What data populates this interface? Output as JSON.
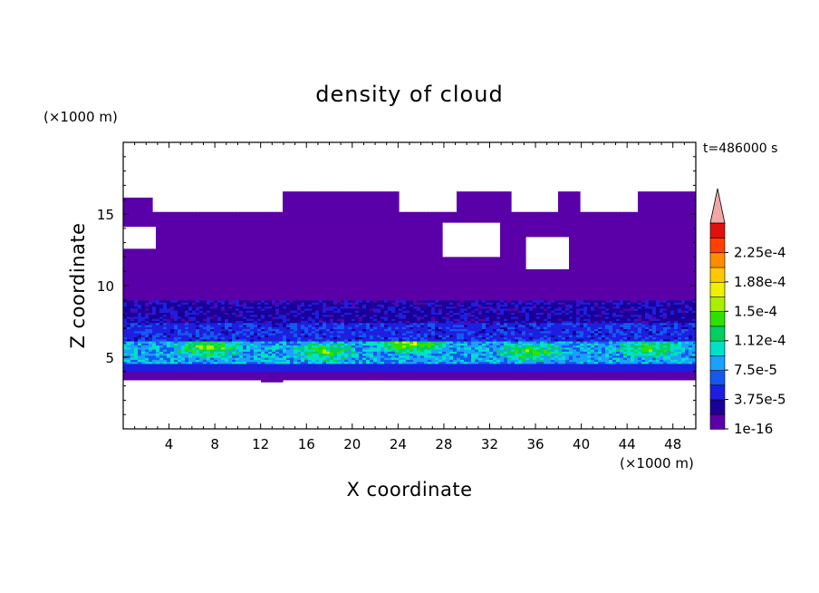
{
  "chart_data": {
    "type": "heatmap",
    "title": "density of cloud",
    "xlabel": "X coordinate",
    "ylabel": "Z coordinate",
    "x_unit": "(×1000 m)",
    "y_unit": "(×1000 m)",
    "time_label": "t=486000 s",
    "xlim": [
      0,
      50
    ],
    "ylim": [
      0,
      20
    ],
    "xticks": [
      4,
      8,
      12,
      16,
      20,
      24,
      28,
      32,
      36,
      40,
      44,
      48
    ],
    "yticks": [
      5,
      10,
      15
    ],
    "colorbar": {
      "levels": [
        1e-16,
        1.875e-05,
        3.75e-05,
        5.625e-05,
        7.5e-05,
        9.375e-05,
        0.0001125,
        0.00013125,
        0.00015,
        0.00016875,
        0.0001875,
        0.00020625,
        0.000225,
        0.00024375
      ],
      "tick_labels": [
        "1e-16",
        "3.75e-5",
        "7.5e-5",
        "1.12e-4",
        "1.5e-4",
        "1.88e-4",
        "2.25e-4"
      ],
      "colors": [
        "#5b00a8",
        "#1a0098",
        "#1e1ee0",
        "#1458f0",
        "#1aa0ff",
        "#00e0c8",
        "#00d060",
        "#30e000",
        "#a8f000",
        "#f0f000",
        "#ffc800",
        "#ff8c00",
        "#ff4000",
        "#e01010"
      ],
      "extend_color": "#f4a6a6",
      "extend": "max"
    },
    "profile_z_bands": [
      {
        "z_min": 3.3,
        "z_max": 4.0,
        "level": 0
      },
      {
        "z_min": 4.0,
        "z_max": 4.6,
        "level": 2
      },
      {
        "z_min": 4.6,
        "z_max": 6.2,
        "level": 4
      },
      {
        "z_min": 6.2,
        "z_max": 7.5,
        "level": 2
      },
      {
        "z_min": 7.5,
        "z_max": 9.0,
        "level": 1
      },
      {
        "z_min": 9.0,
        "z_max": 16.8,
        "level": 0
      }
    ],
    "peak_values_x": [
      {
        "x": 7.5,
        "z": 5.7,
        "value": 0.00015
      },
      {
        "x": 17.5,
        "z": 5.4,
        "value": 0.00013
      },
      {
        "x": 25.0,
        "z": 6.0,
        "value": 0.00016
      },
      {
        "x": 35.5,
        "z": 5.4,
        "value": 0.00013
      },
      {
        "x": 46.0,
        "z": 5.6,
        "value": 0.00013
      }
    ]
  }
}
